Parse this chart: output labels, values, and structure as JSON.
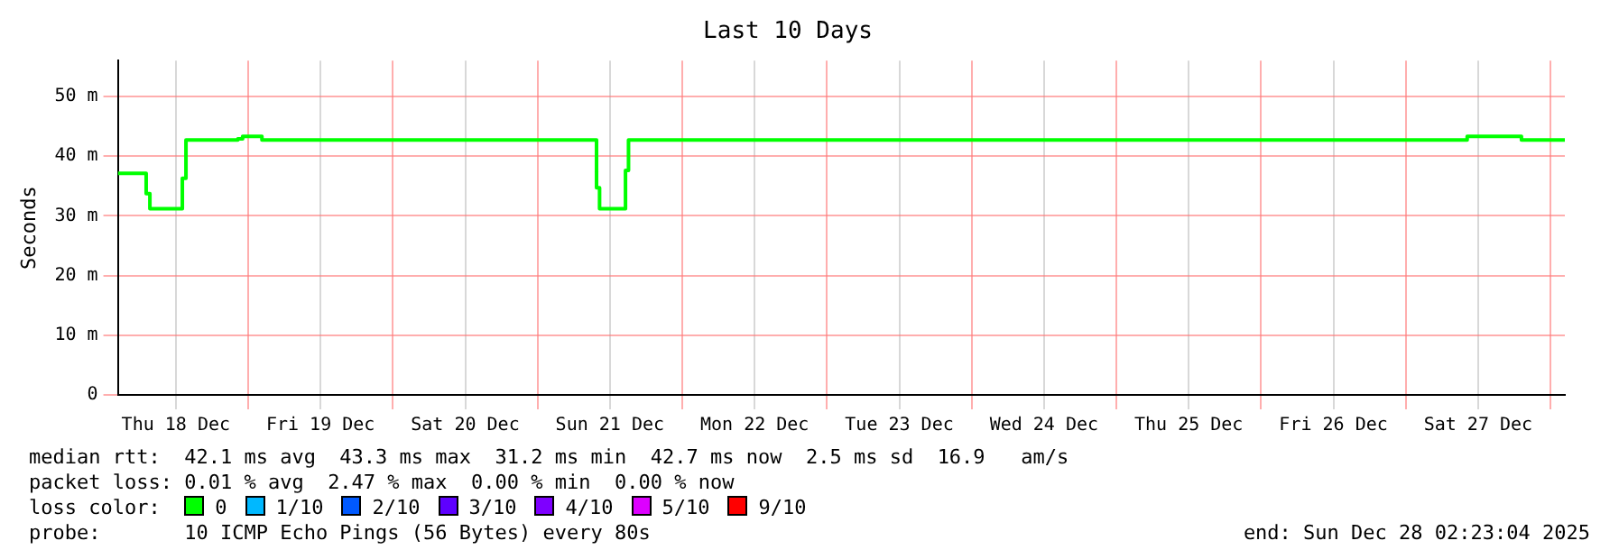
{
  "chart_data": {
    "type": "step",
    "title": "Last 10 Days",
    "ylabel": "Seconds",
    "legend_title": "loss color:",
    "legend": "bottom left",
    "grid": true,
    "xlim": [
      "2025-12-18T02:23",
      "2025-12-28T02:23"
    ],
    "xticks": [
      {
        "value": "2025-12-18T12:00",
        "label": "Thu 18 Dec"
      },
      {
        "value": "2025-12-19T00:00",
        "label": null
      },
      {
        "value": "2025-12-19T12:00",
        "label": "Fri 19 Dec"
      },
      {
        "value": "2025-12-20T00:00",
        "label": null
      },
      {
        "value": "2025-12-20T12:00",
        "label": "Sat 20 Dec"
      },
      {
        "value": "2025-12-21T00:00",
        "label": null
      },
      {
        "value": "2025-12-21T12:00",
        "label": "Sun 21 Dec"
      },
      {
        "value": "2025-12-22T00:00",
        "label": null
      },
      {
        "value": "2025-12-22T12:00",
        "label": "Mon 22 Dec"
      },
      {
        "value": "2025-12-23T00:00",
        "label": null
      },
      {
        "value": "2025-12-23T12:00",
        "label": "Tue 23 Dec"
      },
      {
        "value": "2025-12-24T00:00",
        "label": null
      },
      {
        "value": "2025-12-24T12:00",
        "label": "Wed 24 Dec"
      },
      {
        "value": "2025-12-25T00:00",
        "label": null
      },
      {
        "value": "2025-12-25T12:00",
        "label": "Thu 25 Dec"
      },
      {
        "value": "2025-12-26T00:00",
        "label": null
      },
      {
        "value": "2025-12-26T12:00",
        "label": "Fri 26 Dec"
      },
      {
        "value": "2025-12-27T00:00",
        "label": null
      },
      {
        "value": "2025-12-27T12:00",
        "label": "Sat 27 Dec"
      },
      {
        "value": "2025-12-28T00:00",
        "label": null
      }
    ],
    "ylim": [
      0,
      56
    ],
    "yticks": [
      0,
      {
        "value": 10,
        "label": "10 m"
      },
      {
        "value": 20,
        "label": "20 m"
      },
      {
        "value": 30,
        "label": "30 m"
      },
      {
        "value": 40,
        "label": "40 m"
      },
      {
        "value": 50,
        "label": "50 m"
      }
    ],
    "x": [
      "2025-12-18T02:23",
      "2025-12-18T07:05",
      "2025-12-18T07:42",
      "2025-12-18T13:05",
      "2025-12-18T13:41",
      "2025-12-18T22:17",
      "2025-12-18T23:05",
      "2025-12-19T02:17",
      "2025-12-21T09:47",
      "2025-12-21T10:17",
      "2025-12-21T14:35",
      "2025-12-21T15:05",
      "2025-12-27T10:11",
      "2025-12-27T19:11",
      "2025-12-28T02:23"
    ],
    "series": [
      {
        "name": "0",
        "color": "#00ff00",
        "values": [
          37.1,
          33.7,
          31.2,
          36.3,
          42.7,
          42.9,
          43.3,
          42.7,
          34.7,
          31.2,
          37.6,
          42.7,
          43.3,
          42.7,
          42.7
        ]
      },
      {
        "name": "1/10",
        "color": "#00b8ff",
        "values": [
          null,
          null,
          null,
          null,
          null,
          null,
          null,
          null,
          null,
          null,
          null,
          null,
          null,
          null,
          null
        ]
      },
      {
        "name": "2/10",
        "color": "#0059ff",
        "values": [
          null,
          null,
          null,
          null,
          null,
          null,
          null,
          null,
          null,
          null,
          null,
          null,
          null,
          null,
          null
        ]
      },
      {
        "name": "3/10",
        "color": "#5e00ff",
        "values": [
          null,
          null,
          null,
          null,
          null,
          null,
          null,
          null,
          null,
          null,
          null,
          null,
          null,
          null,
          null
        ]
      },
      {
        "name": "4/10",
        "color": "#7e00ff",
        "values": [
          null,
          null,
          null,
          null,
          null,
          null,
          null,
          null,
          null,
          null,
          null,
          null,
          null,
          null,
          null
        ]
      },
      {
        "name": "5/10",
        "color": "#dd00ff",
        "values": [
          null,
          null,
          null,
          null,
          null,
          null,
          null,
          null,
          null,
          null,
          null,
          null,
          null,
          null,
          null
        ]
      },
      {
        "name": "9/10",
        "color": "#ff0000",
        "values": [
          null,
          null,
          null,
          null,
          null,
          null,
          null,
          null,
          null,
          null,
          null,
          null,
          null,
          null,
          null
        ]
      }
    ],
    "annotations": [
      "median rtt:  42.1 ms avg  43.3 ms max  31.2 ms min  42.7 ms now  2.5 ms sd  16.9   am/s",
      "packet loss: 0.01 % avg  2.47 % max  0.00 % min  0.00 % now",
      "probe:       10 ICMP Echo Pings (56 Bytes) every 80s",
      "end: Sun Dec 28 02:23:04 2025"
    ]
  }
}
